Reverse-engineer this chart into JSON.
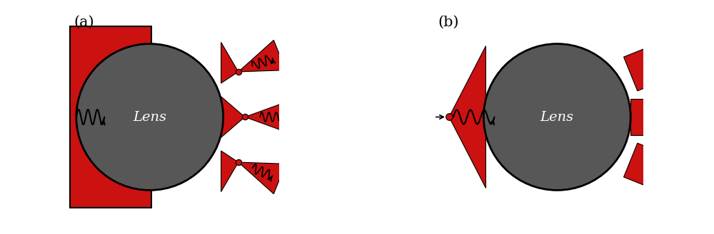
{
  "bg_color": "#ffffff",
  "red_color": "#cc1111",
  "dark_gray": "#575757",
  "black": "#000000",
  "white": "#ffffff",
  "figsize": [
    10.0,
    3.29
  ],
  "dpi": 100,
  "label_a": "(a)",
  "label_b": "(b)",
  "lens_text": "Lens"
}
